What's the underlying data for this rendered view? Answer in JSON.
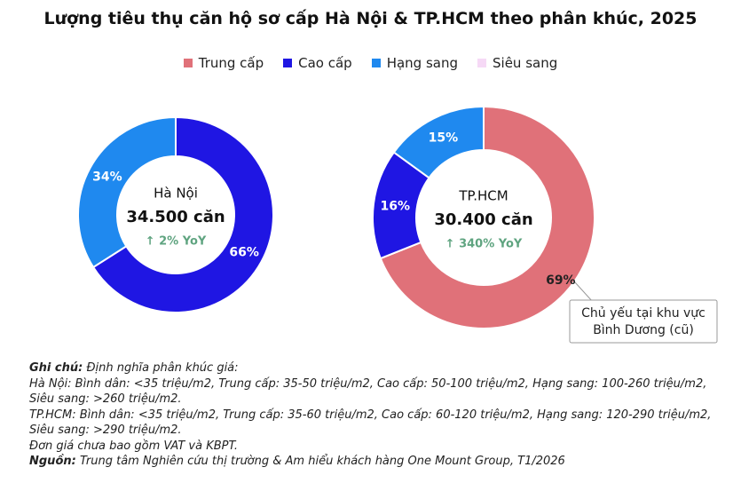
{
  "chart_data": {
    "type": "donut",
    "title": "Lượng tiêu thụ căn hộ sơ cấp Hà Nội & TP.HCM theo phân khúc, 2025",
    "categories": [
      "Trung cấp",
      "Cao cấp",
      "Hạng sang",
      "Siêu sang"
    ],
    "colors": [
      "#e07179",
      "#1f16e3",
      "#1f89ef",
      "#f6d9f6"
    ],
    "series": [
      {
        "name": "Hà Nội",
        "total": "34.500 căn",
        "change": "↑ 2% YoY",
        "values": [
          0,
          66,
          34,
          0
        ],
        "value_labels": [
          null,
          "66%",
          "34%",
          null
        ]
      },
      {
        "name": "TP.HCM",
        "total": "30.400 căn",
        "change": "↑ 340% YoY",
        "values": [
          69,
          16,
          15,
          0
        ],
        "value_labels": [
          "69%",
          "16%",
          "15%",
          null
        ]
      }
    ],
    "annotation": [
      "Chủ yếu tại khu vực",
      "Bình Dương (cũ)"
    ]
  },
  "notes": [
    {
      "label": "Ghi chú:",
      "text": "Định nghĩa phân khúc giá:"
    },
    {
      "text": "Hà Nội: Bình dân: <35 triệu/m2, Trung cấp: 35-50 triệu/m2, Cao cấp: 50-100 triệu/m2, Hạng sang: 100-260 triệu/m2, Siêu sang: >260 triệu/m2."
    },
    {
      "text": "TP.HCM: Bình dân: <35 triệu/m2, Trung cấp: 35-60 triệu/m2, Cao cấp: 60-120 triệu/m2, Hạng sang: 120-290 triệu/m2, Siêu sang: >290 triệu/m2."
    },
    {
      "text": "Đơn giá chưa bao gồm VAT và KBPT."
    },
    {
      "label": "Nguồn:",
      "text": "Trung tâm Nghiên cứu thị trường & Am hiểu khách hàng One Mount Group, T1/2026"
    }
  ]
}
